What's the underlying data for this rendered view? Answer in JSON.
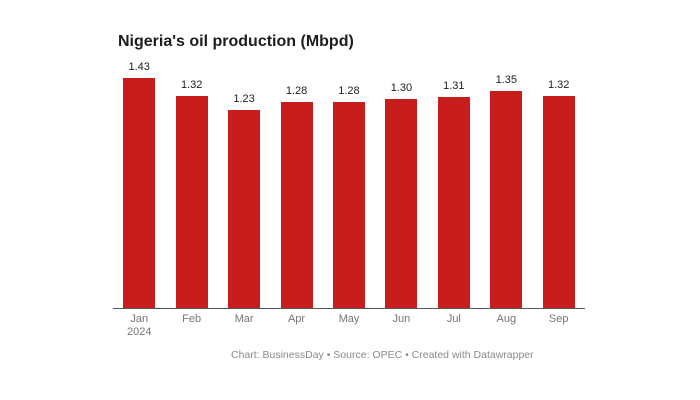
{
  "page": {
    "background_color": "#ffffff"
  },
  "chart_data": {
    "type": "bar",
    "title": "Nigeria's oil production (Mbpd)",
    "categories": [
      "Jan",
      "Feb",
      "Mar",
      "Apr",
      "May",
      "Jun",
      "Jul",
      "Aug",
      "Sep"
    ],
    "first_category_sub_label": "2024",
    "values": [
      1.43,
      1.32,
      1.23,
      1.28,
      1.28,
      1.3,
      1.31,
      1.35,
      1.32
    ],
    "value_labels": [
      "1.43",
      "1.32",
      "1.23",
      "1.28",
      "1.28",
      "1.30",
      "1.31",
      "1.35",
      "1.32"
    ],
    "xlabel": "",
    "ylabel": "",
    "ylim": [
      0,
      1.43
    ],
    "grid": "off",
    "legend": "none",
    "bar_color": "#c71e1d",
    "axis_line_color": "#555555",
    "value_label_color": "#1d1d1d",
    "tick_label_color": "#757575"
  },
  "footer": {
    "text": "Chart: BusinessDay • Source: OPEC • Created with Datawrapper"
  }
}
